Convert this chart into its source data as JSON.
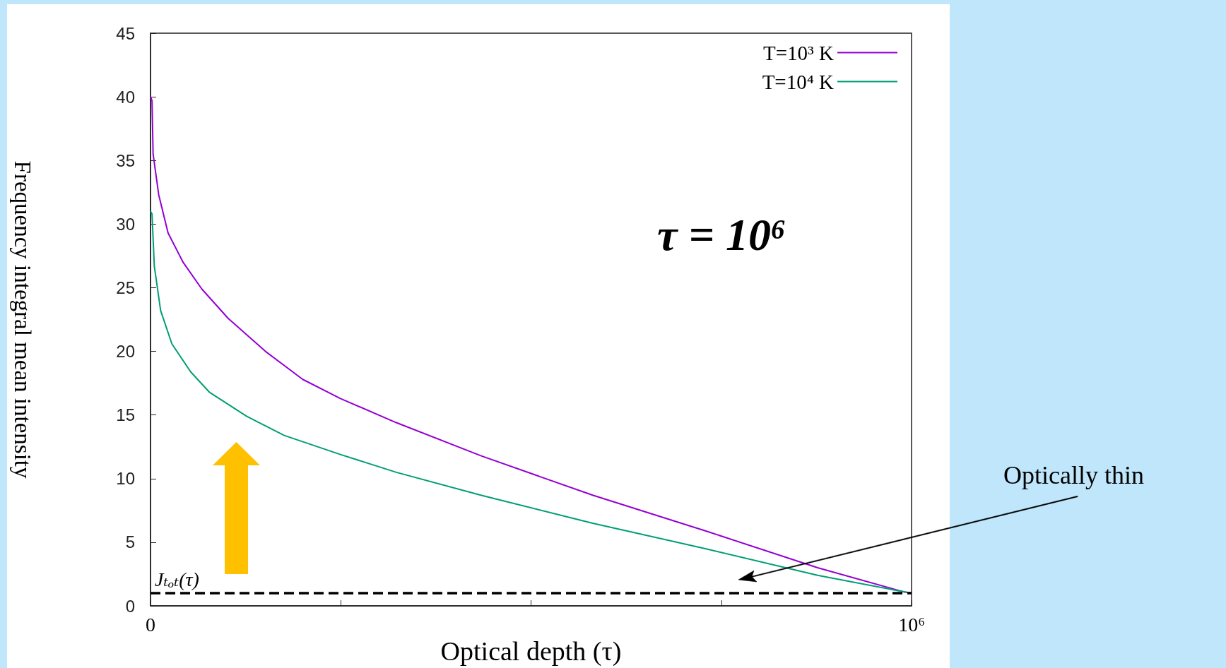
{
  "chart_data": {
    "type": "line",
    "xlabel": "Optical depth (τ)",
    "ylabel": "Frequency integral mean intensity",
    "series": [
      {
        "name": "T=10³ K",
        "color": "#9400d3",
        "x": [
          0,
          2000,
          3400,
          10800,
          23100,
          42800,
          67400,
          101900,
          151000,
          200000,
          249500,
          323000,
          434000,
          581000,
          729000,
          876600,
          990000,
          1000000
        ],
        "values": [
          40,
          39.7,
          35.5,
          32.3,
          29.3,
          27.0,
          24.9,
          22.6,
          20.0,
          17.8,
          16.3,
          14.4,
          11.8,
          8.7,
          5.9,
          3.0,
          1.1,
          1
        ]
      },
      {
        "name": "T=10⁴ K",
        "color": "#009e73",
        "x": [
          0,
          2000,
          5000,
          13300,
          28000,
          52700,
          77300,
          126500,
          175700,
          249500,
          323000,
          434000,
          581000,
          729000,
          876600,
          1000000
        ],
        "values": [
          31,
          30.8,
          26.7,
          23.2,
          20.6,
          18.4,
          16.8,
          14.9,
          13.4,
          11.9,
          10.5,
          8.7,
          6.5,
          4.5,
          2.4,
          1
        ]
      }
    ],
    "xlim": [
      0,
      1000000
    ],
    "xticks": [
      0,
      {
        "value": 250000,
        "label": null
      },
      {
        "value": 500000,
        "label": null
      },
      {
        "value": 750000,
        "label": null
      },
      {
        "value": 1000000,
        "label": "10⁶"
      }
    ],
    "ylim": [
      0,
      45
    ],
    "yticks": [
      0,
      5,
      10,
      15,
      20,
      25,
      30,
      35,
      40,
      45
    ],
    "ref_lines": [
      {
        "axis": "y",
        "value": 1,
        "label": "Jₜₒₜ(τ)",
        "color": "#000000",
        "line_style": "dashed"
      }
    ],
    "annotations": [
      "τ = 10⁶",
      "Optically thin"
    ],
    "grid": false,
    "legend": "top right",
    "marker": "none",
    "line_style": "solid"
  }
}
